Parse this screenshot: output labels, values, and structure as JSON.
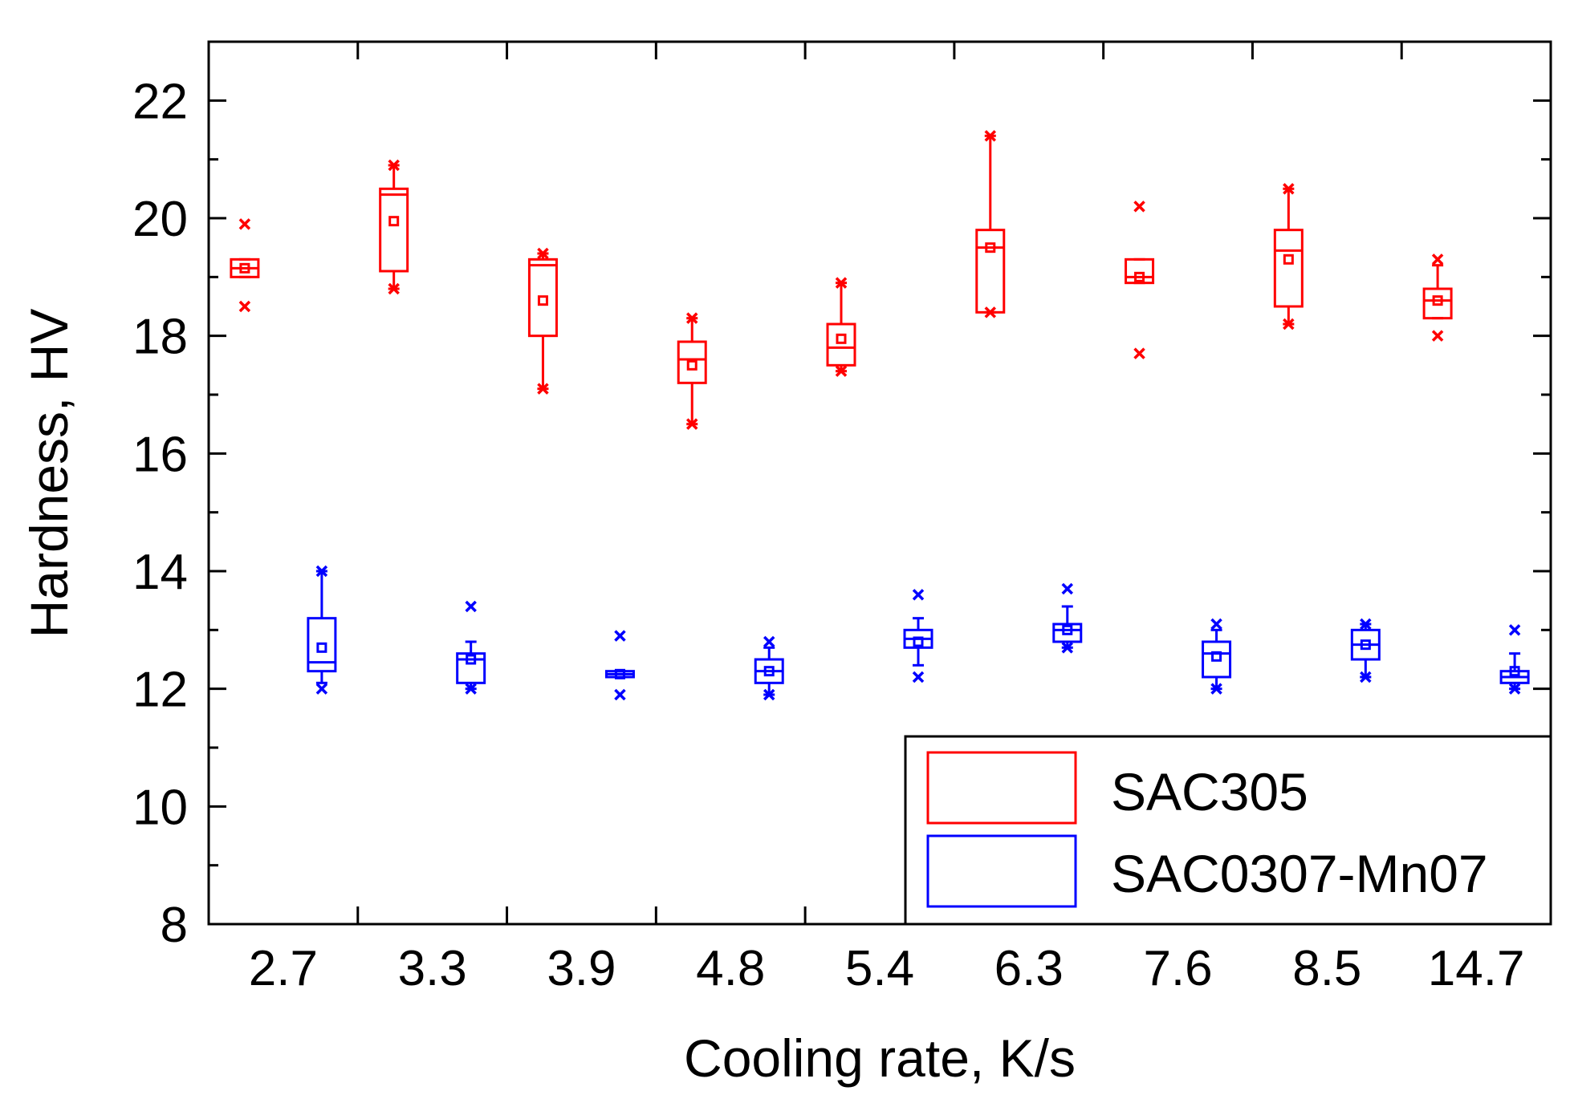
{
  "chart_data": {
    "type": "box",
    "title": "",
    "xlabel": "Cooling rate, K/s",
    "ylabel": "Hardness, HV",
    "ylim": [
      8,
      23
    ],
    "yticks": [
      8,
      10,
      12,
      14,
      16,
      18,
      20,
      22
    ],
    "categories": [
      "2.7",
      "3.3",
      "3.9",
      "4.8",
      "5.4",
      "6.3",
      "7.6",
      "8.5",
      "14.7"
    ],
    "grid": false,
    "legend_position": "bottom-right",
    "series": [
      {
        "name": "SAC305",
        "color": "#ff0000",
        "boxes": [
          {
            "q1": 19.0,
            "median": 19.15,
            "q3": 19.3,
            "mean": 19.15,
            "whisker_low": 19.0,
            "whisker_high": 19.3,
            "min": 18.5,
            "max": 19.9
          },
          {
            "q1": 19.1,
            "median": 20.4,
            "q3": 20.5,
            "mean": 19.95,
            "whisker_low": 18.8,
            "whisker_high": 20.9,
            "min": 18.8,
            "max": 20.9
          },
          {
            "q1": 18.0,
            "median": 19.2,
            "q3": 19.3,
            "mean": 18.6,
            "whisker_low": 17.1,
            "whisker_high": 19.4,
            "min": 17.1,
            "max": 19.4
          },
          {
            "q1": 17.2,
            "median": 17.6,
            "q3": 17.9,
            "mean": 17.5,
            "whisker_low": 16.5,
            "whisker_high": 18.3,
            "min": 16.5,
            "max": 18.3
          },
          {
            "q1": 17.5,
            "median": 17.8,
            "q3": 18.2,
            "mean": 17.95,
            "whisker_low": 17.4,
            "whisker_high": 18.9,
            "min": 17.4,
            "max": 18.9
          },
          {
            "q1": 18.4,
            "median": 19.5,
            "q3": 19.8,
            "mean": 19.5,
            "whisker_low": 18.4,
            "whisker_high": 21.4,
            "min": 18.4,
            "max": 21.4
          },
          {
            "q1": 18.9,
            "median": 19.0,
            "q3": 19.3,
            "mean": 19.0,
            "whisker_low": 18.9,
            "whisker_high": 19.3,
            "min": 17.7,
            "max": 20.2
          },
          {
            "q1": 18.5,
            "median": 19.45,
            "q3": 19.8,
            "mean": 19.3,
            "whisker_low": 18.2,
            "whisker_high": 20.5,
            "min": 18.2,
            "max": 20.5
          },
          {
            "q1": 18.3,
            "median": 18.6,
            "q3": 18.8,
            "mean": 18.6,
            "whisker_low": 18.3,
            "whisker_high": 19.2,
            "min": 18.0,
            "max": 19.3
          }
        ]
      },
      {
        "name": "SAC0307-Mn07",
        "color": "#0000ff",
        "boxes": [
          {
            "q1": 12.3,
            "median": 12.45,
            "q3": 13.2,
            "mean": 12.7,
            "whisker_low": 12.1,
            "whisker_high": 14.0,
            "min": 12.0,
            "max": 14.0
          },
          {
            "q1": 12.1,
            "median": 12.5,
            "q3": 12.6,
            "mean": 12.5,
            "whisker_low": 12.0,
            "whisker_high": 12.8,
            "min": 12.0,
            "max": 13.4
          },
          {
            "q1": 12.2,
            "median": 12.25,
            "q3": 12.3,
            "mean": 12.25,
            "whisker_low": 12.2,
            "whisker_high": 12.3,
            "min": 11.9,
            "max": 12.9
          },
          {
            "q1": 12.1,
            "median": 12.3,
            "q3": 12.5,
            "mean": 12.3,
            "whisker_low": 11.9,
            "whisker_high": 12.7,
            "min": 11.9,
            "max": 12.8
          },
          {
            "q1": 12.7,
            "median": 12.85,
            "q3": 13.0,
            "mean": 12.8,
            "whisker_low": 12.4,
            "whisker_high": 13.2,
            "min": 12.2,
            "max": 13.6
          },
          {
            "q1": 12.8,
            "median": 13.0,
            "q3": 13.1,
            "mean": 13.0,
            "whisker_low": 12.7,
            "whisker_high": 13.4,
            "min": 12.7,
            "max": 13.7
          },
          {
            "q1": 12.2,
            "median": 12.6,
            "q3": 12.8,
            "mean": 12.55,
            "whisker_low": 12.0,
            "whisker_high": 13.0,
            "min": 12.0,
            "max": 13.1
          },
          {
            "q1": 12.5,
            "median": 12.75,
            "q3": 13.0,
            "mean": 12.75,
            "whisker_low": 12.2,
            "whisker_high": 13.1,
            "min": 12.2,
            "max": 13.1
          },
          {
            "q1": 12.1,
            "median": 12.2,
            "q3": 12.3,
            "mean": 12.3,
            "whisker_low": 12.0,
            "whisker_high": 12.6,
            "min": 12.0,
            "max": 13.0
          }
        ]
      }
    ]
  }
}
